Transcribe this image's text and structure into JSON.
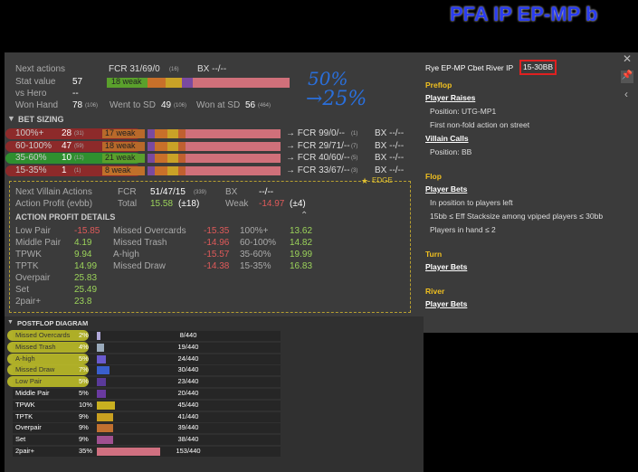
{
  "header": {
    "title": "PFA IP EP-MP b"
  },
  "annotations": [
    "50%",
    "→25%"
  ],
  "stats": {
    "next_actions": {
      "label": "Next actions",
      "fcr": "FCR 31/69/0",
      "fcr_count": "(16)",
      "bx": "BX --/--"
    },
    "stat_value": {
      "label": "Stat value",
      "value": 57,
      "bar_label": "18 weak"
    },
    "vs_hero": {
      "label": "vs Hero",
      "value": "--"
    },
    "won_hand": {
      "label": "Won Hand",
      "value": 78,
      "count": "(106)",
      "went_label": "Went to SD",
      "went_value": 49,
      "went_count": "(106)",
      "won_sd_label": "Won at SD",
      "won_sd_value": 56,
      "won_sd_count": "(464)"
    }
  },
  "bet_sizing": {
    "title": "BET SIZING",
    "edge": "EDGE",
    "rows": [
      {
        "label": "100%+",
        "value": 28,
        "count": "(31)",
        "bar_label": "17 weak",
        "fcr": "→ FCR 99/0/--",
        "fcr_count": "(1)",
        "bx": "BX --/--"
      },
      {
        "label": "60-100%",
        "value": 47,
        "count": "(59)",
        "bar_label": "18 weak",
        "fcr": "→ FCR 29/71/--",
        "fcr_count": "(7)",
        "bx": "BX --/--"
      },
      {
        "label": "35-60%",
        "value": 10,
        "count": "(12)",
        "bar_label": "21 weak",
        "fcr": "→ FCR 40/60/--",
        "fcr_count": "(5)",
        "bx": "BX --/--"
      },
      {
        "label": "15-35%",
        "value": 1,
        "count": "(1)",
        "bar_label": "8 weak",
        "fcr": "→ FCR 33/67/--",
        "fcr_count": "(3)",
        "bx": "BX --/--"
      }
    ]
  },
  "villain": {
    "next_label": "Next Villain Actions",
    "fcr_label": "FCR",
    "fcr_value": "51/47/15",
    "fcr_count": "(339)",
    "bx_label": "BX",
    "bx_value": "--/--",
    "profit_label": "Action Profit (evbb)",
    "total_label": "Total",
    "total": 15.58,
    "total_err": "(±18)",
    "weak_label": "Weak",
    "weak": -14.97,
    "weak_err": "(±4)"
  },
  "details": {
    "title": "ACTION PROFIT DETAILS",
    "rows": [
      [
        {
          "label": "Low Pair",
          "value": -15.85
        },
        {
          "label": "Missed Overcards",
          "value": -15.35
        },
        {
          "label": "100%+",
          "value": 13.62
        }
      ],
      [
        {
          "label": "Middle Pair",
          "value": 4.19
        },
        {
          "label": "Missed Trash",
          "value": -14.96
        },
        {
          "label": "60-100%",
          "value": 14.82
        }
      ],
      [
        {
          "label": "TPWK",
          "value": 9.94
        },
        {
          "label": "A-high",
          "value": -15.57
        },
        {
          "label": "35-60%",
          "value": 19.99
        }
      ],
      [
        {
          "label": "TPTK",
          "value": 14.99
        },
        {
          "label": "Missed Draw",
          "value": -14.38
        },
        {
          "label": "15-35%",
          "value": 16.83
        }
      ],
      [
        {
          "label": "Overpair",
          "value": 25.83
        }
      ],
      [
        {
          "label": "Set",
          "value": 25.49
        }
      ],
      [
        {
          "label": "2pair+",
          "value": 23.8
        }
      ]
    ]
  },
  "postflop": {
    "title": "POSTFLOP DIAGRAM",
    "rows": [
      {
        "label": "Missed Overcards",
        "pct": "2%",
        "count": "8/440"
      },
      {
        "label": "Missed Trash",
        "pct": "4%",
        "count": "19/440"
      },
      {
        "label": "A-high",
        "pct": "5%",
        "count": "24/440"
      },
      {
        "label": "Missed Draw",
        "pct": "7%",
        "count": "30/440"
      },
      {
        "label": "Low Pair",
        "pct": "5%",
        "count": "23/440"
      },
      {
        "label": "Middle Pair",
        "pct": "5%",
        "count": "20/440"
      },
      {
        "label": "TPWK",
        "pct": "10%",
        "count": "45/440"
      },
      {
        "label": "TPTK",
        "pct": "9%",
        "count": "41/440"
      },
      {
        "label": "Overpair",
        "pct": "9%",
        "count": "39/440"
      },
      {
        "label": "Set",
        "pct": "9%",
        "count": "38/440"
      },
      {
        "label": "2pair+",
        "pct": "35%",
        "count": "153/440"
      }
    ]
  },
  "filter": {
    "title": "Rye EP-MP Cbet River IP",
    "badge": "15-30BB",
    "sections": [
      {
        "title": "Preflop",
        "groups": [
          {
            "action": "Player Raises",
            "conditions": [
              "Position: UTG-MP1",
              "First non-fold action on street"
            ]
          },
          {
            "action": "Villain Calls",
            "conditions": [
              "Position: BB"
            ]
          }
        ]
      },
      {
        "title": "Flop",
        "groups": [
          {
            "action": "Player Bets",
            "conditions": [
              "In position to players left",
              "15bb ≤ Eff Stacksize among vpiped players ≤ 30bb",
              "Players in hand ≤ 2"
            ]
          }
        ]
      },
      {
        "title": "Turn",
        "groups": [
          {
            "action": "Player Bets",
            "conditions": []
          }
        ]
      },
      {
        "title": "River",
        "groups": [
          {
            "action": "Player Bets",
            "conditions": []
          }
        ]
      }
    ]
  }
}
